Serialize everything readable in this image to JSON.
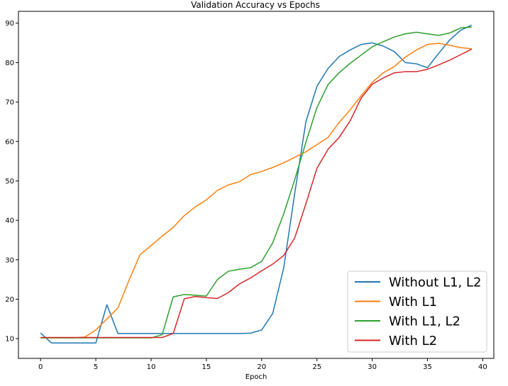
{
  "chart_data": {
    "type": "line",
    "title": "Validation Accuracy vs Epochs",
    "xlabel": "Epoch",
    "ylabel": "",
    "xlim": [
      -2,
      41
    ],
    "ylim": [
      5,
      93
    ],
    "xticks": [
      0,
      5,
      10,
      15,
      20,
      25,
      30,
      35,
      40
    ],
    "yticks": [
      10,
      20,
      30,
      40,
      50,
      60,
      70,
      80,
      90
    ],
    "grid": false,
    "legend_position": "lower-right",
    "x": [
      0,
      1,
      2,
      3,
      4,
      5,
      6,
      7,
      8,
      9,
      10,
      11,
      12,
      13,
      14,
      15,
      16,
      17,
      18,
      19,
      20,
      21,
      22,
      23,
      24,
      25,
      26,
      27,
      28,
      29,
      30,
      31,
      32,
      33,
      34,
      35,
      36,
      37,
      38,
      39
    ],
    "series": [
      {
        "name": "Without L1, L2",
        "color": "#1f77b4",
        "values": [
          11.4,
          8.9,
          8.9,
          8.9,
          8.9,
          8.9,
          18.6,
          11.3,
          11.3,
          11.3,
          11.3,
          11.3,
          11.3,
          11.3,
          11.3,
          11.3,
          11.3,
          11.3,
          11.3,
          11.4,
          12.2,
          16.4,
          28.0,
          47.0,
          65.0,
          74.0,
          78.5,
          81.5,
          83.2,
          84.6,
          85.0,
          84.2,
          82.8,
          80.0,
          79.7,
          78.7,
          82.3,
          85.7,
          88.2,
          89.5
        ]
      },
      {
        "name": "With L1",
        "color": "#ff7f0e",
        "values": [
          10.2,
          10.2,
          10.2,
          10.2,
          10.4,
          12.2,
          15.0,
          17.8,
          24.8,
          31.3,
          33.6,
          36.0,
          38.2,
          41.2,
          43.4,
          45.2,
          47.6,
          49.0,
          49.8,
          51.6,
          52.4,
          53.4,
          54.6,
          56.0,
          57.4,
          59.2,
          61.0,
          64.8,
          68.0,
          71.6,
          75.0,
          77.4,
          79.0,
          81.4,
          83.2,
          84.6,
          84.9,
          84.4,
          83.8,
          83.5
        ]
      },
      {
        "name": "With L1, L2",
        "color": "#2ca02c",
        "values": [
          10.2,
          10.2,
          10.2,
          10.2,
          10.2,
          10.2,
          10.2,
          10.2,
          10.2,
          10.2,
          10.2,
          11.0,
          20.6,
          21.2,
          21.0,
          20.8,
          25.0,
          27.1,
          27.6,
          28.0,
          29.6,
          34.3,
          41.7,
          50.4,
          59.8,
          68.6,
          74.4,
          77.4,
          79.8,
          81.9,
          84.0,
          85.3,
          86.5,
          87.3,
          87.7,
          87.3,
          86.9,
          87.5,
          88.8,
          89.0
        ]
      },
      {
        "name": "With L2",
        "color": "#d62728",
        "values": [
          10.3,
          10.3,
          10.3,
          10.3,
          10.3,
          10.3,
          10.3,
          10.3,
          10.3,
          10.3,
          10.3,
          10.3,
          11.3,
          20.1,
          20.7,
          20.4,
          20.2,
          21.7,
          23.9,
          25.4,
          27.2,
          28.9,
          31.1,
          35.6,
          44.2,
          53.2,
          58.0,
          61.0,
          65.2,
          71.0,
          74.5,
          76.1,
          77.4,
          77.7,
          77.7,
          78.3,
          79.4,
          80.6,
          82.0,
          83.4
        ]
      }
    ]
  }
}
